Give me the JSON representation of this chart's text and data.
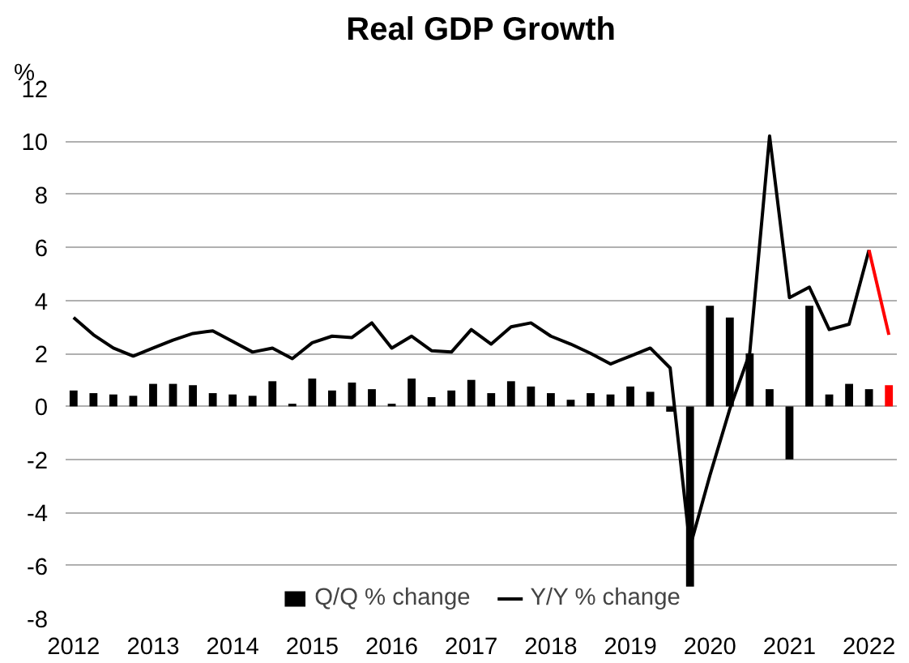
{
  "chart_data": {
    "type": "bar",
    "title": "Real GDP Growth",
    "ylabel": "%",
    "x": [
      2012.0,
      2012.25,
      2012.5,
      2012.75,
      2013.0,
      2013.25,
      2013.5,
      2013.75,
      2014.0,
      2014.25,
      2014.5,
      2014.75,
      2015.0,
      2015.25,
      2015.5,
      2015.75,
      2016.0,
      2016.25,
      2016.5,
      2016.75,
      2017.0,
      2017.25,
      2017.5,
      2017.75,
      2018.0,
      2018.25,
      2018.5,
      2018.75,
      2019.0,
      2019.25,
      2019.5,
      2019.75,
      2020.0,
      2020.25,
      2020.5,
      2020.75,
      2021.0,
      2021.25,
      2021.5,
      2021.75,
      2022.0,
      2022.25
    ],
    "series": [
      {
        "name": "Q/Q % change",
        "color": "#000000",
        "colors": [
          "#000000",
          "#000000",
          "#000000",
          "#000000",
          "#000000",
          "#000000",
          "#000000",
          "#000000",
          "#000000",
          "#000000",
          "#000000",
          "#000000",
          "#000000",
          "#000000",
          "#000000",
          "#000000",
          "#000000",
          "#000000",
          "#000000",
          "#000000",
          "#000000",
          "#000000",
          "#000000",
          "#000000",
          "#000000",
          "#000000",
          "#000000",
          "#000000",
          "#000000",
          "#000000",
          "#000000",
          "#000000",
          "#000000",
          "#000000",
          "#000000",
          "#000000",
          "#000000",
          "#000000",
          "#000000",
          "#000000",
          "#000000",
          "#ff0000"
        ],
        "values": [
          0.6,
          0.5,
          0.45,
          0.4,
          0.85,
          0.85,
          0.8,
          0.5,
          0.45,
          0.4,
          0.95,
          0.1,
          1.05,
          0.6,
          0.9,
          0.65,
          0.1,
          1.05,
          0.35,
          0.6,
          1.0,
          0.5,
          0.95,
          0.75,
          0.5,
          0.25,
          0.5,
          0.45,
          0.75,
          0.55,
          -0.2,
          -6.8,
          3.8,
          3.35,
          2.0,
          0.65,
          -2.0,
          3.8,
          0.45,
          0.85,
          0.65,
          0.8
        ]
      },
      {
        "name": "Y/Y % change",
        "type": "line",
        "color": "#000000",
        "values": [
          3.35,
          2.7,
          2.2,
          1.9,
          2.2,
          2.5,
          2.75,
          2.85,
          2.45,
          2.05,
          2.2,
          1.8,
          2.4,
          2.65,
          2.6,
          3.15,
          2.2,
          2.65,
          2.1,
          2.05,
          2.9,
          2.35,
          3.0,
          3.15,
          2.65,
          2.35,
          2.0,
          1.6,
          1.9,
          2.2,
          1.45,
          -5.3,
          -2.6,
          -0.1,
          2.0,
          10.2,
          4.1,
          4.5,
          2.9,
          3.1,
          5.9,
          null
        ]
      },
      {
        "type": "line",
        "color": "#ff0000",
        "x": [
          2022.0,
          2022.25
        ],
        "values": [
          5.9,
          2.7
        ]
      }
    ],
    "xlim": [
      2011.9,
      2022.35
    ],
    "xticks": [
      2012,
      2013,
      2014,
      2015,
      2016,
      2017,
      2018,
      2019,
      2020,
      2021,
      2022
    ],
    "ylim": [
      -8,
      12
    ],
    "yticks": [
      -8,
      -6,
      -4,
      -2,
      0,
      2,
      4,
      6,
      8,
      10,
      12
    ],
    "grid": "y",
    "legend": "bottom",
    "line_style": "solid"
  }
}
